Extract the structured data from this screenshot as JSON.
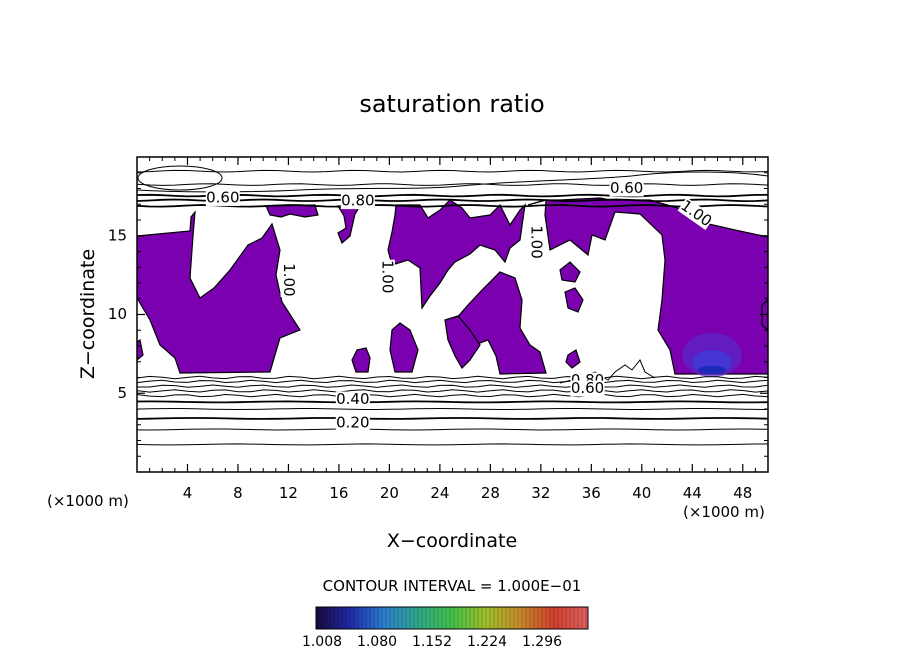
{
  "chart_data": {
    "type": "contour",
    "title": "saturation ratio",
    "xlabel": "X−coordinate",
    "ylabel": "Z−coordinate",
    "x_unit_label": "(×1000 m)",
    "z_unit_label": "(×1000 m)",
    "xlim": [
      0,
      50
    ],
    "ylim": [
      0,
      20
    ],
    "x_ticks": [
      4,
      8,
      12,
      16,
      20,
      24,
      28,
      32,
      36,
      40,
      44,
      48
    ],
    "y_ticks": [
      5,
      10,
      15
    ],
    "contour_interval_label": "CONTOUR INTERVAL = 1.000E−01",
    "contour_labels": [
      {
        "text": "0.60",
        "x": 6.8,
        "z": 17.4
      },
      {
        "text": "0.80",
        "x": 17.5,
        "z": 17.2
      },
      {
        "text": "0.60",
        "x": 38.8,
        "z": 18.0
      },
      {
        "text": "1.00",
        "x": 44.3,
        "z": 16.4
      },
      {
        "text": "1.00",
        "x": 31.6,
        "z": 14.6
      },
      {
        "text": "1.00",
        "x": 19.8,
        "z": 12.4
      },
      {
        "text": "1.00",
        "x": 12.0,
        "z": 12.2
      },
      {
        "text": "0.80",
        "x": 35.7,
        "z": 5.8
      },
      {
        "text": "0.60",
        "x": 35.7,
        "z": 5.3
      },
      {
        "text": "0.40",
        "x": 17.1,
        "z": 4.6
      },
      {
        "text": "0.20",
        "x": 17.1,
        "z": 3.1
      }
    ],
    "horizontal_contours_z": [
      1.75,
      2.7,
      3.4,
      4.0,
      4.45,
      4.85,
      5.15,
      5.45,
      5.75,
      6.0
    ],
    "upper_contours_z": [
      16.9,
      17.25,
      17.55,
      18.25,
      19.1
    ],
    "supersaturation_fill_color": "#7a00b0",
    "colorbar": {
      "tick_labels": [
        "1.008",
        "1.080",
        "1.152",
        "1.224",
        "1.296"
      ],
      "colors": [
        "#1a0a3a",
        "#1e2aa8",
        "#2c7fd0",
        "#2fa88a",
        "#43c24a",
        "#9fc02c",
        "#c88a2a",
        "#d04030",
        "#e06060"
      ]
    }
  }
}
